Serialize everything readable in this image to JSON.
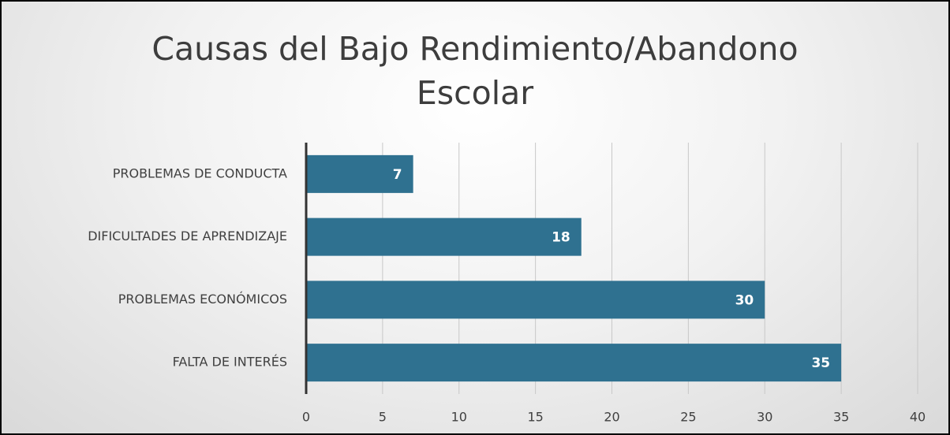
{
  "chart_data": {
    "type": "bar",
    "orientation": "horizontal",
    "title": "Causas del Bajo Rendimiento/Abandono Escolar",
    "categories": [
      "PROBLEMAS DE CONDUCTA",
      "DIFICULTADES DE APRENDIZAJE",
      "PROBLEMAS ECONÓMICOS",
      "FALTA DE INTERÉS"
    ],
    "values": [
      7,
      18,
      30,
      35
    ],
    "color": "#2f7190",
    "xlim": [
      0,
      40
    ],
    "xticks": [
      0,
      5,
      10,
      15,
      20,
      25,
      30,
      35,
      40
    ],
    "grid": true
  }
}
